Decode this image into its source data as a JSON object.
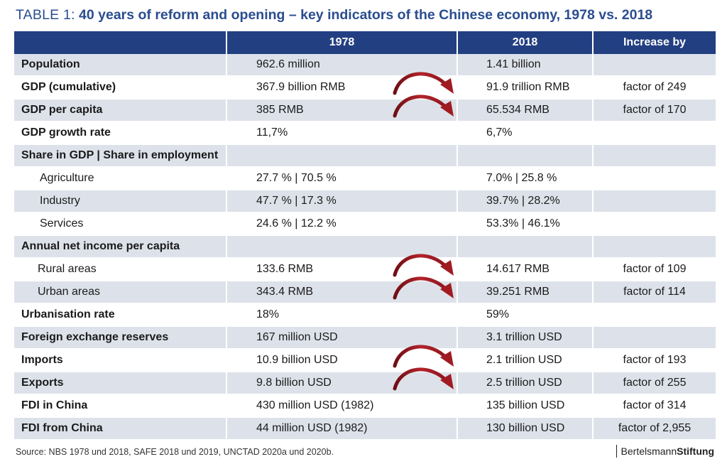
{
  "title": {
    "prefix": "TABLE 1:",
    "main": "40 years of reform and opening – key indicators of the Chinese economy, 1978 vs. 2018"
  },
  "header": [
    "",
    "1978",
    "2018",
    "Increase by"
  ],
  "rows": [
    {
      "label": "Population",
      "v1978": "962.6 million",
      "v2018": "1.41 billion",
      "increase": "",
      "style": "bold",
      "arrow": false
    },
    {
      "label": "GDP (cumulative)",
      "v1978": "367.9 billion RMB",
      "v2018": "91.9 trillion RMB",
      "increase": "factor of 249",
      "style": "bold",
      "arrow": true
    },
    {
      "label": "GDP per capita",
      "v1978": "385 RMB",
      "v2018": "65.534 RMB",
      "increase": "factor of 170",
      "style": "bold",
      "arrow": true
    },
    {
      "label": "GDP growth rate",
      "v1978": "11,7%",
      "v2018": "6,7%",
      "increase": "",
      "style": "bold",
      "arrow": false
    },
    {
      "label": "Share in GDP | Share in employment",
      "v1978": "",
      "v2018": "",
      "increase": "",
      "style": "bold",
      "arrow": false
    },
    {
      "label": "Agriculture",
      "v1978": "27.7 % | 70.5 %",
      "v2018": "7.0%   | 25.8 %",
      "increase": "",
      "style": "sub",
      "arrow": false
    },
    {
      "label": "Industry",
      "v1978": "47.7 % | 17.3 %",
      "v2018": "39.7% | 28.2%",
      "increase": "",
      "style": "sub",
      "arrow": false
    },
    {
      "label": "Services",
      "v1978": "24.6 % | 12.2 %",
      "v2018": "53.3% | 46.1%",
      "increase": "",
      "style": "sub",
      "arrow": false
    },
    {
      "label": "Annual net income per capita",
      "v1978": "",
      "v2018": "",
      "increase": "",
      "style": "bold",
      "arrow": false
    },
    {
      "label": "Rural areas",
      "v1978": "133.6 RMB",
      "v2018": "14.617 RMB",
      "increase": "factor of 109",
      "style": "sub2",
      "arrow": true
    },
    {
      "label": "Urban areas",
      "v1978": "343.4 RMB",
      "v2018": "39.251 RMB",
      "increase": "factor of 114",
      "style": "sub2",
      "arrow": true
    },
    {
      "label": "Urbanisation rate",
      "v1978": "18%",
      "v2018": "59%",
      "increase": "",
      "style": "bold",
      "arrow": false
    },
    {
      "label": "Foreign exchange reserves",
      "v1978": "167 million USD",
      "v2018": "3.1 trillion USD",
      "increase": "",
      "style": "bold",
      "arrow": false
    },
    {
      "label": "Imports",
      "v1978": "10.9 billion USD",
      "v2018": "2.1 trillion USD",
      "increase": "factor of 193",
      "style": "bold",
      "arrow": true
    },
    {
      "label": "Exports",
      "v1978": "9.8 billion USD",
      "v2018": "2.5 trillion USD",
      "increase": "factor of 255",
      "style": "bold",
      "arrow": true
    },
    {
      "label": "FDI in China",
      "v1978": "430 million USD (1982)",
      "v2018": "135 billion USD",
      "increase": "factor of 314",
      "style": "bold",
      "arrow": false
    },
    {
      "label": "FDI from China",
      "v1978": "44 million USD (1982)",
      "v2018": "130 billion USD",
      "increase": "factor of 2,955",
      "style": "bold",
      "arrow": false
    }
  ],
  "source": "Source: NBS 1978 und 2018, SAFE 2018 und 2019, UNCTAD 2020a und 2020b.",
  "logo": {
    "part1": "Bertelsmann",
    "part2": "Stiftung"
  },
  "colors": {
    "header_bg": "#223f82",
    "title": "#2a4d8f",
    "stripe": "#dde2ea",
    "arrow": "#a01c22"
  }
}
